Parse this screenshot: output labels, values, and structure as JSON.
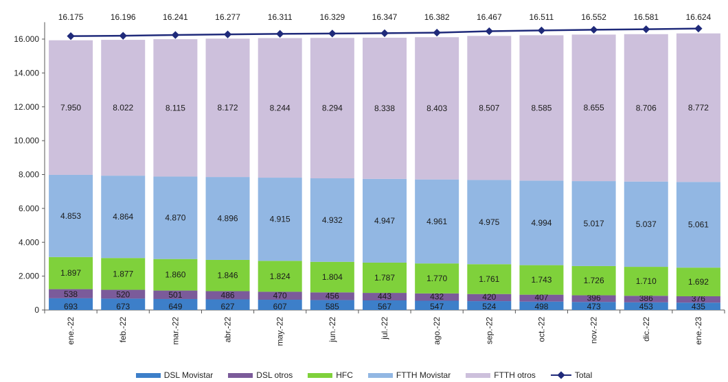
{
  "chart_data": {
    "type": "bar",
    "stacked": true,
    "title": "",
    "xlabel": "",
    "ylabel": "",
    "ylim": [
      0,
      17000
    ],
    "y_ticks": [
      "0",
      "2.000",
      "4.000",
      "6.000",
      "8.000",
      "10.000",
      "12.000",
      "14.000",
      "16.000"
    ],
    "y_tick_values": [
      0,
      2000,
      4000,
      6000,
      8000,
      10000,
      12000,
      14000,
      16000
    ],
    "grid": false,
    "legend_position": "bottom",
    "categories": [
      "ene.-22",
      "feb.-22",
      "mar.-22",
      "abr.-22",
      "may.-22",
      "jun.-22",
      "jul.-22",
      "ago.-22",
      "sep.-22",
      "oct.-22",
      "nov.-22",
      "dic.-22",
      "ene.-23"
    ],
    "series": [
      {
        "name": "DSL Movistar",
        "color": "#3d7fc9",
        "values": [
          693,
          673,
          649,
          627,
          607,
          585,
          567,
          547,
          524,
          498,
          473,
          453,
          435
        ],
        "labels": [
          "693",
          "673",
          "649",
          "627",
          "607",
          "585",
          "567",
          "547",
          "524",
          "498",
          "473",
          "453",
          "435"
        ]
      },
      {
        "name": "DSL otros",
        "color": "#7b5b9a",
        "values": [
          538,
          520,
          501,
          486,
          470,
          456,
          443,
          432,
          420,
          407,
          396,
          386,
          376
        ],
        "labels": [
          "538",
          "520",
          "501",
          "486",
          "470",
          "456",
          "443",
          "432",
          "420",
          "407",
          "396",
          "386",
          "376"
        ]
      },
      {
        "name": "HFC",
        "color": "#7fd13b",
        "values": [
          1897,
          1877,
          1860,
          1846,
          1824,
          1804,
          1787,
          1770,
          1761,
          1743,
          1726,
          1710,
          1692
        ],
        "labels": [
          "1.897",
          "1.877",
          "1.860",
          "1.846",
          "1.824",
          "1.804",
          "1.787",
          "1.770",
          "1.761",
          "1.743",
          "1.726",
          "1.710",
          "1.692"
        ]
      },
      {
        "name": "FTTH Movistar",
        "color": "#92b7e3",
        "values": [
          4853,
          4864,
          4870,
          4896,
          4915,
          4932,
          4947,
          4961,
          4975,
          4994,
          5017,
          5037,
          5061
        ],
        "labels": [
          "4.853",
          "4.864",
          "4.870",
          "4.896",
          "4.915",
          "4.932",
          "4.947",
          "4.961",
          "4.975",
          "4.994",
          "5.017",
          "5.037",
          "5.061"
        ]
      },
      {
        "name": "FTTH otros",
        "color": "#cdc0dc",
        "values": [
          7950,
          8022,
          8115,
          8172,
          8244,
          8294,
          8338,
          8403,
          8507,
          8585,
          8655,
          8706,
          8772
        ],
        "labels": [
          "7.950",
          "8.022",
          "8.115",
          "8.172",
          "8.244",
          "8.294",
          "8.338",
          "8.403",
          "8.507",
          "8.585",
          "8.655",
          "8.706",
          "8.772"
        ]
      }
    ],
    "total": {
      "name": "Total",
      "type": "line",
      "color": "#1f2a7a",
      "values": [
        16175,
        16196,
        16241,
        16277,
        16311,
        16329,
        16347,
        16382,
        16467,
        16511,
        16552,
        16581,
        16624
      ],
      "labels": [
        "16.175",
        "16.196",
        "16.241",
        "16.277",
        "16.311",
        "16.329",
        "16.347",
        "16.382",
        "16.467",
        "16.511",
        "16.552",
        "16.581",
        "16.624"
      ]
    }
  }
}
